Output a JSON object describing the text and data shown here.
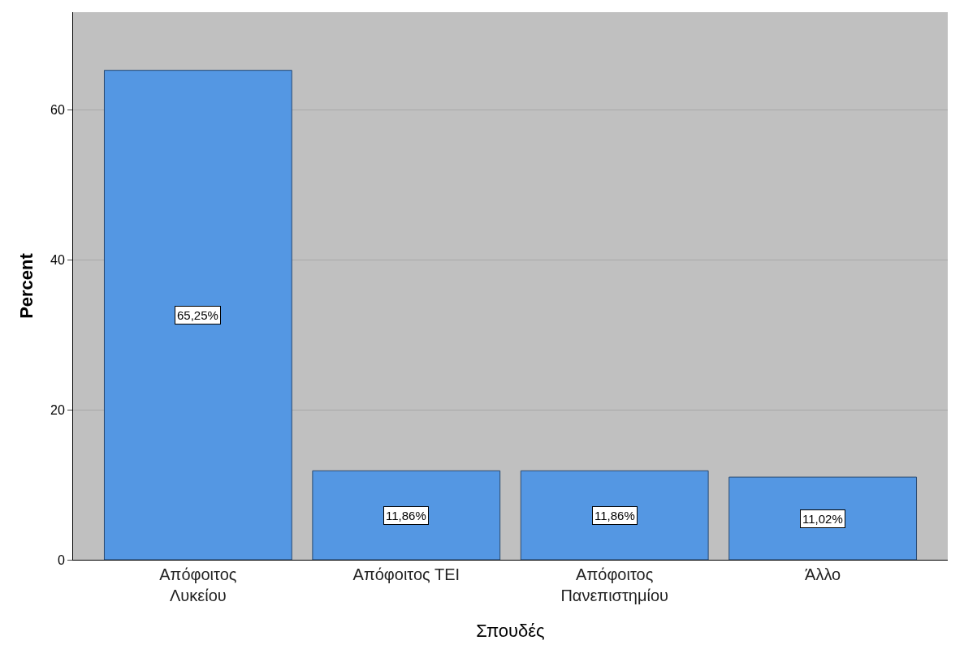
{
  "chart_data": {
    "type": "bar",
    "xlabel": "Σπουδές",
    "ylabel": "Percent",
    "categories": [
      "Απόφοιτος Λυκείου",
      "Απόφοιτος ΤΕΙ",
      "Απόφοιτος Πανεπιστημίου",
      "Άλλο"
    ],
    "values": [
      65.25,
      11.86,
      11.86,
      11.02
    ],
    "value_labels": [
      "65,25%",
      "11,86%",
      "11,86%",
      "11,02%"
    ],
    "color": "#5497e3",
    "ylim": [
      0,
      73
    ],
    "yticks": [
      0,
      20,
      40,
      60
    ],
    "grid": "y",
    "legend": false
  }
}
